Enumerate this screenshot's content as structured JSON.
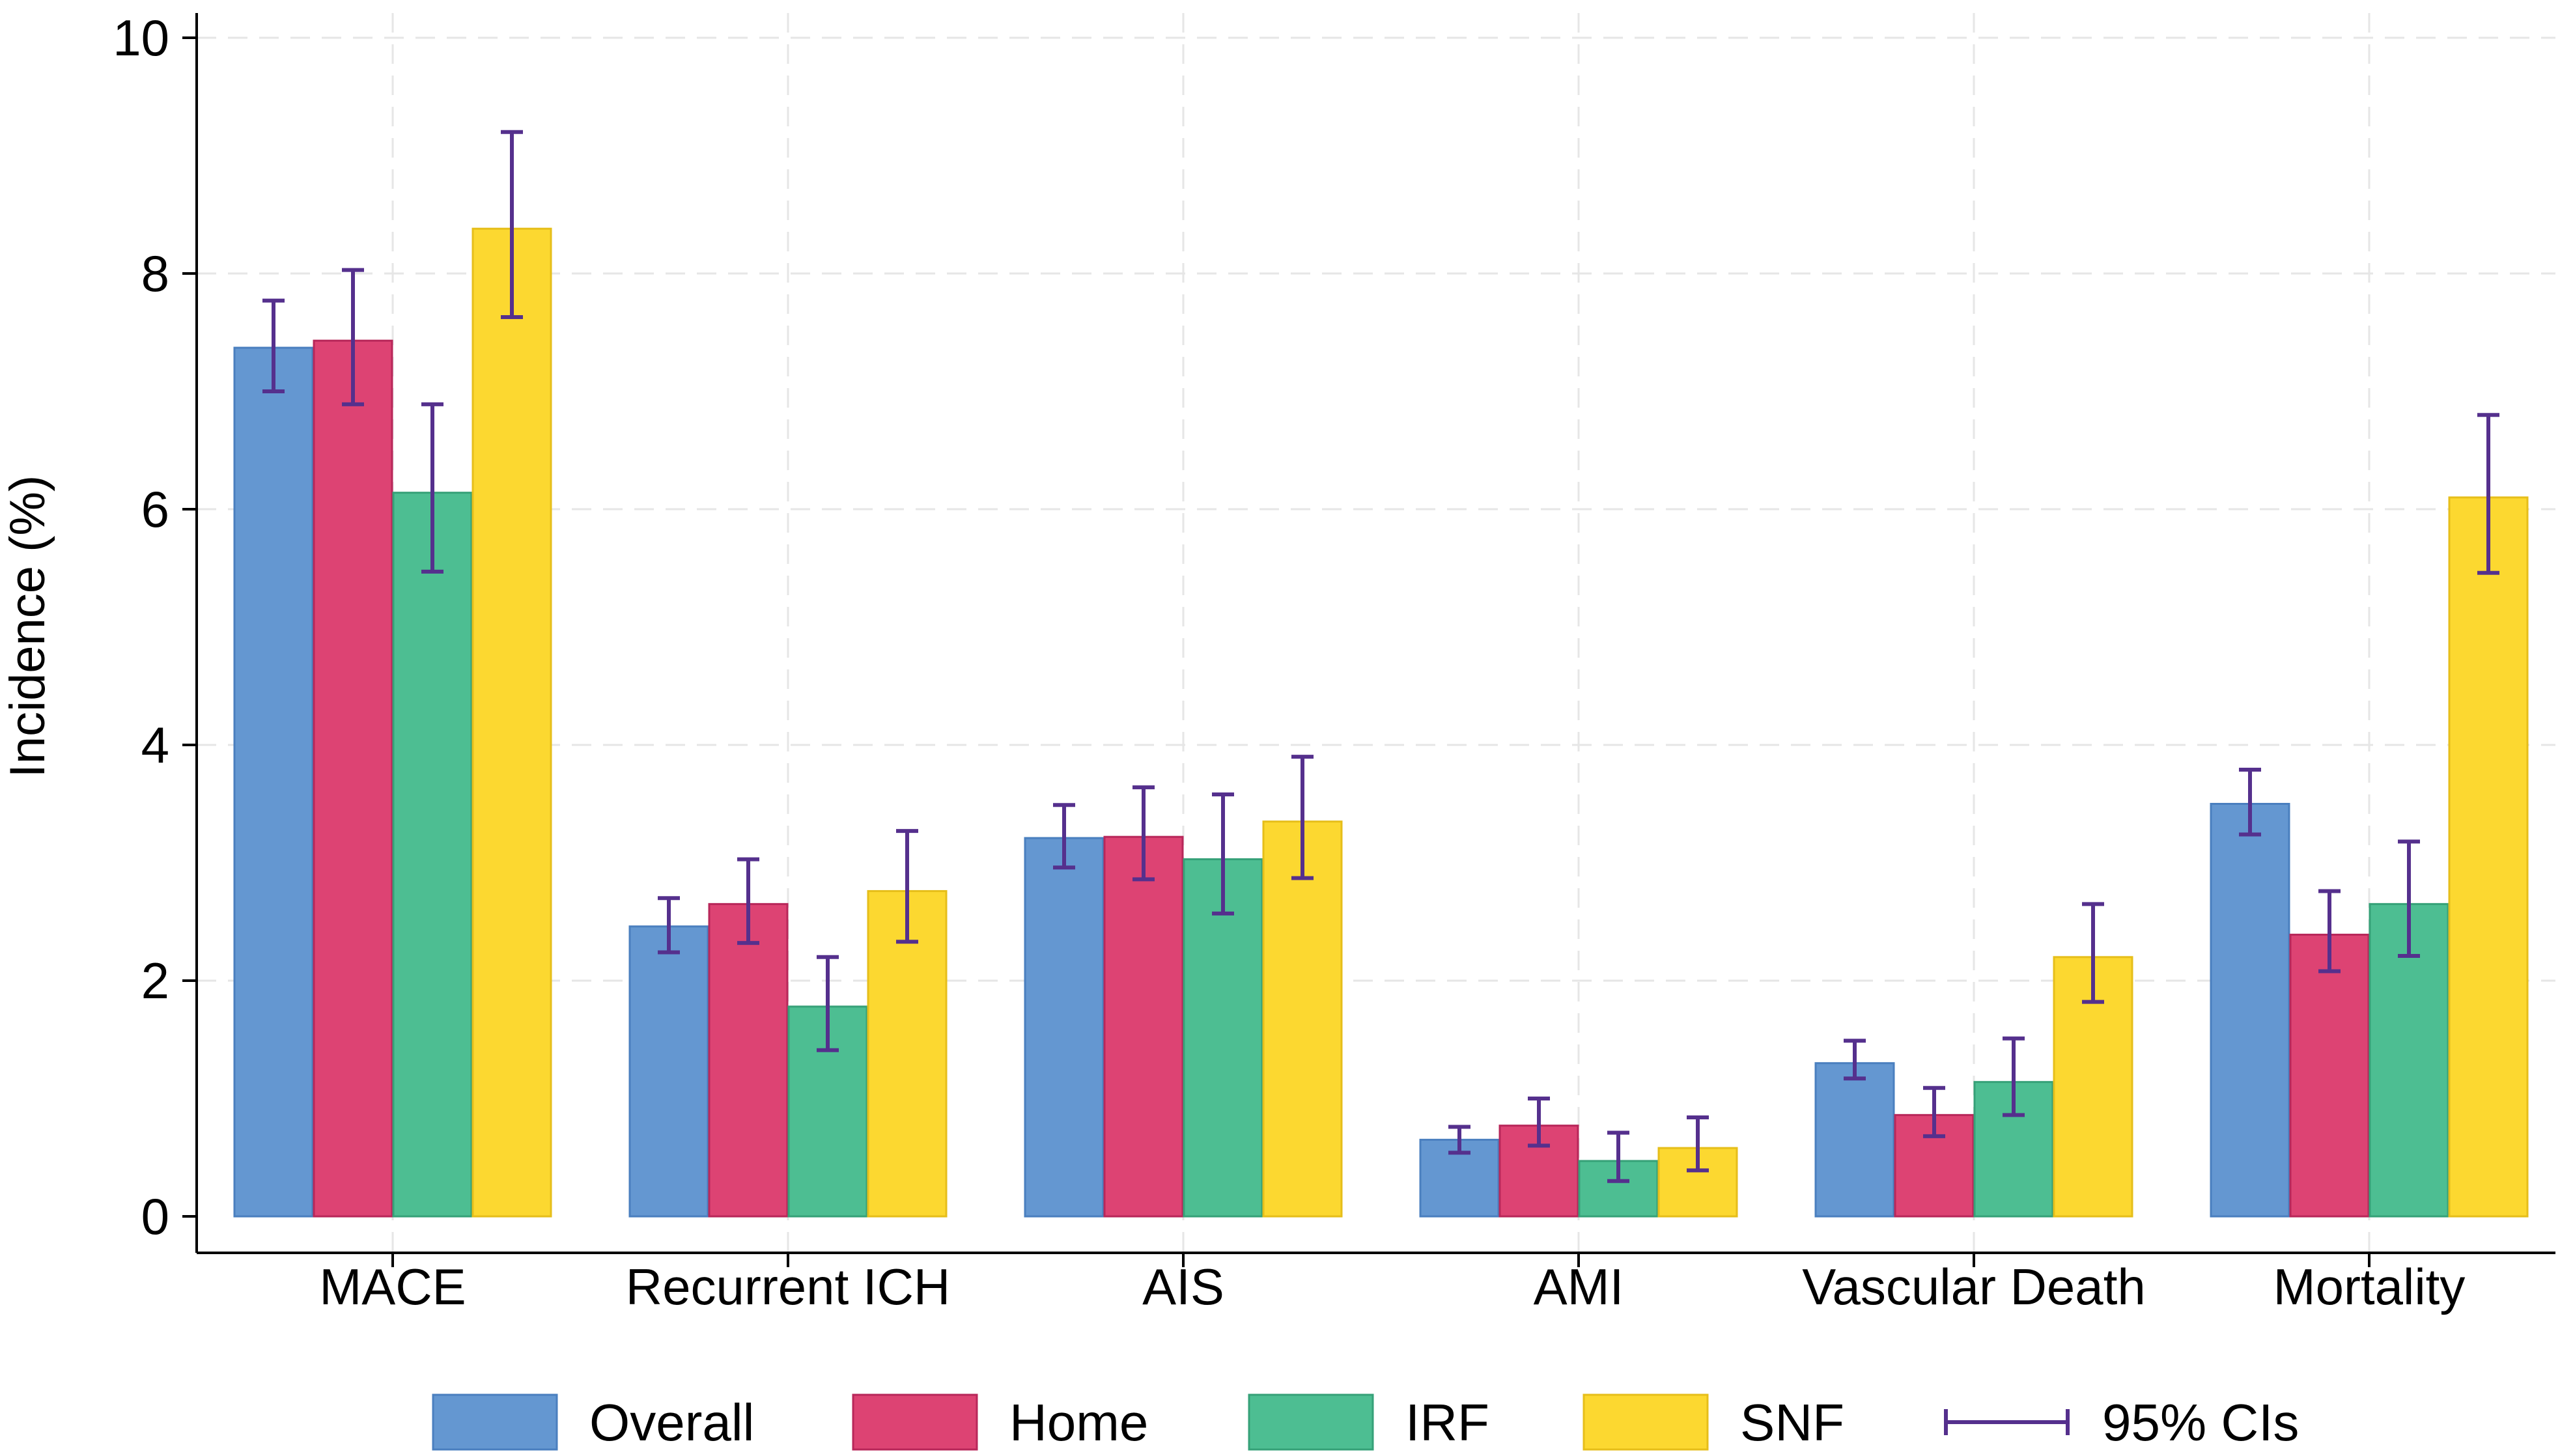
{
  "chart_data": {
    "type": "bar",
    "title": "",
    "xlabel": "",
    "ylabel": "Incidence (%)",
    "ylim": [
      0,
      10
    ],
    "yticks": [
      0,
      2,
      4,
      6,
      8,
      10
    ],
    "grid": true,
    "legend_position": "bottom",
    "categories": [
      "MACE",
      "Recurrent ICH",
      "AIS",
      "AMI",
      "Vascular Death",
      "Mortality"
    ],
    "series": [
      {
        "name": "Overall",
        "color": "#6497d1",
        "stroke": "#4a7fbf",
        "values": [
          7.37,
          2.46,
          3.21,
          0.65,
          1.3,
          3.5
        ],
        "ci_low": [
          7.0,
          2.24,
          2.96,
          0.54,
          1.17,
          3.24
        ],
        "ci_high": [
          7.77,
          2.7,
          3.49,
          0.76,
          1.49,
          3.79
        ]
      },
      {
        "name": "Home",
        "color": "#dd4373",
        "stroke": "#b8275a",
        "values": [
          7.43,
          2.65,
          3.22,
          0.77,
          0.86,
          2.39
        ],
        "ci_low": [
          6.89,
          2.32,
          2.86,
          0.6,
          0.68,
          2.08
        ],
        "ci_high": [
          8.03,
          3.03,
          3.64,
          1.0,
          1.09,
          2.76
        ]
      },
      {
        "name": "IRF",
        "color": "#4dbe92",
        "stroke": "#36a178",
        "values": [
          6.14,
          1.78,
          3.03,
          0.47,
          1.14,
          2.65
        ],
        "ci_low": [
          5.47,
          1.41,
          2.57,
          0.3,
          0.86,
          2.21
        ],
        "ci_high": [
          6.89,
          2.2,
          3.58,
          0.71,
          1.51,
          3.18
        ]
      },
      {
        "name": "SNF",
        "color": "#fcd830",
        "stroke": "#e6be1a",
        "values": [
          8.38,
          2.76,
          3.35,
          0.58,
          2.2,
          6.1
        ],
        "ci_low": [
          7.63,
          2.33,
          2.87,
          0.39,
          1.82,
          5.46
        ],
        "ci_high": [
          9.2,
          3.27,
          3.9,
          0.84,
          2.65,
          6.8
        ]
      }
    ],
    "ci_legend_label": "95% CIs",
    "ci_color": "#55308d"
  }
}
